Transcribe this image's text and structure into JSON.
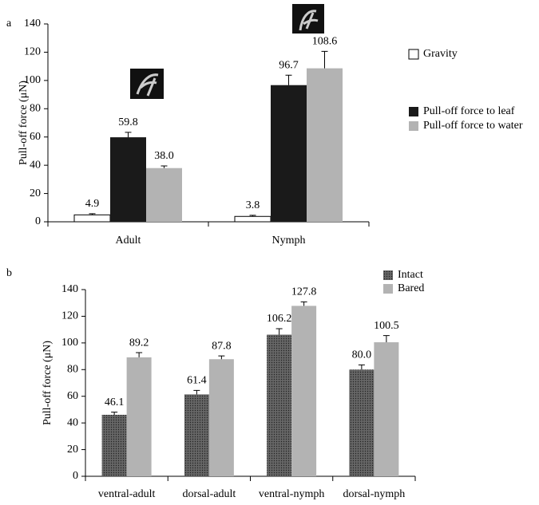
{
  "chart_data": [
    {
      "type": "bar",
      "panel_label": "a",
      "ylabel": "Pull-off force (μN)",
      "categories": [
        "Adult",
        "Nymph"
      ],
      "series": [
        {
          "name": "Gravity",
          "color": "#ffffff",
          "values": [
            4.9,
            3.8
          ],
          "errors": [
            0.8,
            0.8
          ],
          "value_labels": [
            "4.9",
            "3.8"
          ]
        },
        {
          "name": "Pull-off force to leaf",
          "color": "#1a1a1a",
          "values": [
            59.8,
            96.7
          ],
          "errors": [
            3.5,
            7
          ],
          "value_labels": [
            "59.8",
            "96.7"
          ]
        },
        {
          "name": "Pull-off force to water",
          "color": "#b3b3b3",
          "values": [
            38.0,
            108.6
          ],
          "errors": [
            1.5,
            12
          ],
          "value_labels": [
            "38.0",
            "108.6"
          ]
        }
      ],
      "ylim": [
        0,
        140
      ],
      "yticks": [
        0,
        20,
        40,
        60,
        80,
        100,
        120,
        140
      ],
      "legend": "right"
    },
    {
      "type": "bar",
      "panel_label": "b",
      "ylabel": "Pull-off force (μN)",
      "categories": [
        "ventral-adult",
        "dorsal-adult",
        "ventral-nymph",
        "dorsal-nymph"
      ],
      "series": [
        {
          "name": "Intact",
          "color": "#555555",
          "values": [
            46.1,
            61.4,
            106.2,
            80.0
          ],
          "errors": [
            2,
            3,
            4.5,
            3.5
          ],
          "value_labels": [
            "46.1",
            "61.4",
            "106.2",
            "80.0"
          ]
        },
        {
          "name": "Bared",
          "color": "#b3b3b3",
          "values": [
            89.2,
            87.8,
            127.8,
            100.5
          ],
          "errors": [
            3.5,
            2.5,
            3,
            5
          ],
          "value_labels": [
            "89.2",
            "87.8",
            "127.8",
            "100.5"
          ]
        }
      ],
      "ylim": [
        0,
        140
      ],
      "yticks": [
        0,
        20,
        40,
        60,
        80,
        100,
        120,
        140
      ],
      "legend": "top right"
    }
  ]
}
